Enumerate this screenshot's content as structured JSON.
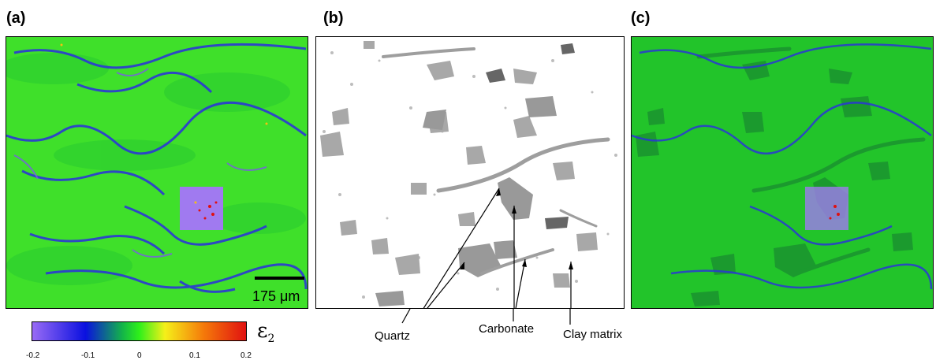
{
  "panels": {
    "a": {
      "label": "(a)"
    },
    "b": {
      "label": "(b)"
    },
    "c": {
      "label": "(c)"
    }
  },
  "scale_bar": {
    "label": "175 μm"
  },
  "annotations": {
    "quartz": "Quartz",
    "carbonate": "Carbonate",
    "clay_matrix": "Clay matrix"
  },
  "colorbar": {
    "symbol": "ε",
    "subscript": "2",
    "ticks": [
      "-0.2",
      "-0.1",
      "0",
      "0.1",
      "0.2"
    ],
    "min": -0.2,
    "max": 0.2,
    "colors": [
      "#9a6cf5",
      "#0a10e0",
      "#13b34a",
      "#2ef01a",
      "#f5f019",
      "#f57a0a",
      "#e01010"
    ]
  }
}
